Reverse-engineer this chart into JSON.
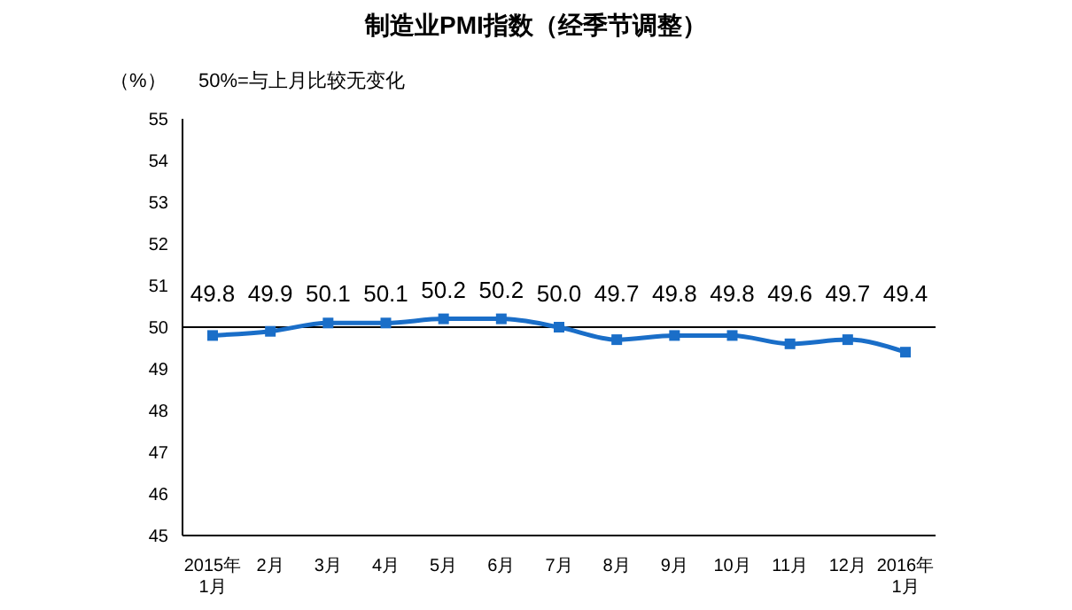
{
  "chart_data": {
    "type": "line",
    "title": "制造业PMI指数（经季节调整）",
    "ylabel": "（%）",
    "annotations": [
      "50%=与上月比较无变化"
    ],
    "categories": [
      "2015年\n1月",
      "2月",
      "3月",
      "4月",
      "5月",
      "6月",
      "7月",
      "8月",
      "9月",
      "10月",
      "11月",
      "12月",
      "2016年\n1月"
    ],
    "series": [
      {
        "color": "#1a6ec8",
        "values": [
          49.8,
          49.9,
          50.1,
          50.1,
          50.2,
          50.2,
          50.0,
          49.7,
          49.8,
          49.8,
          49.6,
          49.7,
          49.4
        ],
        "value_labels": [
          "49.8",
          "49.9",
          "50.1",
          "50.1",
          "50.2",
          "50.2",
          "50.0",
          "49.7",
          "49.8",
          "49.8",
          "49.6",
          "49.7",
          "49.4"
        ]
      }
    ],
    "ylim": [
      45,
      55
    ],
    "yticks": [
      45,
      46,
      47,
      48,
      49,
      50,
      51,
      52,
      53,
      54,
      55
    ],
    "ref_lines": [
      {
        "axis": "y",
        "value": 50,
        "color": "#000000"
      }
    ],
    "marker": "square",
    "grid": false
  }
}
